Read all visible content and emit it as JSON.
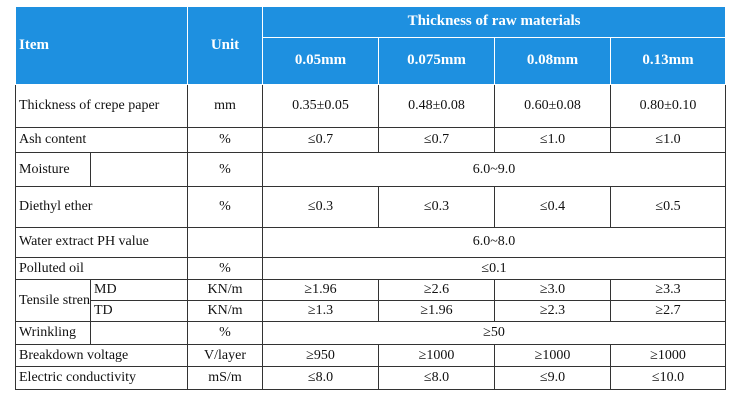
{
  "header": {
    "item": "Item",
    "unit": "Unit",
    "span_title": "Thickness of raw materials",
    "thicknesses": [
      "0.05mm",
      "0.075mm",
      "0.08mm",
      "0.13mm"
    ]
  },
  "rows": {
    "crepe": {
      "name": "Thickness of crepe paper",
      "unit": "mm",
      "values": [
        "0.35±0.05",
        "0.48±0.08",
        "0.60±0.08",
        "0.80±0.10"
      ]
    },
    "ash": {
      "name": "Ash content",
      "unit": "%",
      "values": [
        "≤0.7",
        "≤0.7",
        "≤1.0",
        "≤1.0"
      ]
    },
    "moisture": {
      "name": "Moisture",
      "unit": "%",
      "value": "6.0~9.0"
    },
    "ether": {
      "name": "Diethyl ether",
      "unit": "%",
      "values": [
        "≤0.3",
        "≤0.3",
        "≤0.4",
        "≤0.5"
      ]
    },
    "ph": {
      "name": "Water extract PH value",
      "value": "6.0~8.0"
    },
    "oil": {
      "name": "Polluted oil",
      "unit": "%",
      "value": "≤0.1"
    },
    "tensile": {
      "name": "Tensile strength",
      "md": {
        "label": "MD",
        "unit": "KN/m",
        "values": [
          "≥1.96",
          "≥2.6",
          "≥3.0",
          "≥3.3"
        ]
      },
      "td": {
        "label": "TD",
        "unit": "KN/m",
        "values": [
          "≥1.3",
          "≥1.96",
          "≥2.3",
          "≥2.7"
        ]
      }
    },
    "wrinkling": {
      "name": "Wrinkling",
      "unit": "%",
      "value": "≥50"
    },
    "breakdown": {
      "name": "Breakdown voltage",
      "unit": "V/layer",
      "values": [
        "≥950",
        "≥1000",
        "≥1000",
        "≥1000"
      ]
    },
    "conductivity": {
      "name": "Electric conductivity",
      "unit": "mS/m",
      "values": [
        "≤8.0",
        "≤8.0",
        "≤9.0",
        "≤10.0"
      ]
    }
  },
  "colors": {
    "header_bg": "#1e90e0",
    "header_text": "#ffffff",
    "border": "#333333"
  }
}
